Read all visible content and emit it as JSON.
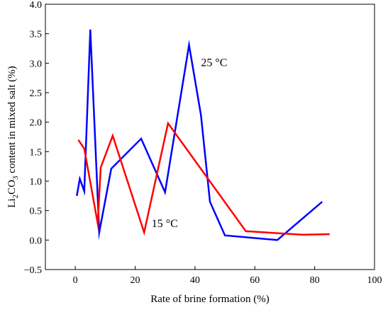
{
  "chart_data": {
    "type": "line",
    "xlabel": "Rate of brine formation (%)",
    "ylabel": {
      "prefix": "Li",
      "sub1": "2",
      "mid": "CO",
      "sub2": "3",
      "suffix": " content in mixed salt (%)"
    },
    "xlim": [
      -10,
      100
    ],
    "ylim": [
      -0.5,
      4.0
    ],
    "xticks": [
      0,
      20,
      40,
      60,
      80,
      100
    ],
    "yticks": [
      -0.5,
      0.0,
      0.5,
      1.0,
      1.5,
      2.0,
      2.5,
      3.0,
      3.5,
      4.0
    ],
    "xtick_labels": [
      "0",
      "20",
      "40",
      "60",
      "80",
      "100"
    ],
    "ytick_labels": [
      "−0.5",
      "0.0",
      "0.5",
      "1.0",
      "1.5",
      "2.0",
      "2.5",
      "3.0",
      "3.5",
      "4.0"
    ],
    "grid": false,
    "series": [
      {
        "name": "25 °C",
        "color": "#0000ff",
        "x": [
          0.5,
          1.5,
          3,
          5,
          8,
          12,
          22,
          30,
          38,
          42,
          45,
          50,
          67.5,
          82.5
        ],
        "y": [
          0.75,
          1.04,
          0.83,
          3.57,
          0.13,
          1.21,
          1.72,
          0.81,
          3.31,
          2.12,
          0.65,
          0.08,
          0.0,
          0.65
        ]
      },
      {
        "name": "15 °C",
        "color": "#ff0000",
        "x": [
          1,
          3,
          7.5,
          8.5,
          12.5,
          23,
          31,
          57,
          76,
          85
        ],
        "y": [
          1.7,
          1.55,
          0.28,
          1.23,
          1.77,
          0.13,
          1.98,
          0.15,
          0.09,
          0.1
        ]
      }
    ],
    "annotations": [
      {
        "text": "25 °C",
        "series": 0,
        "x": 42,
        "y": 2.95
      },
      {
        "text": "15 °C",
        "series": 1,
        "x": 25.5,
        "y": 0.22
      }
    ]
  }
}
